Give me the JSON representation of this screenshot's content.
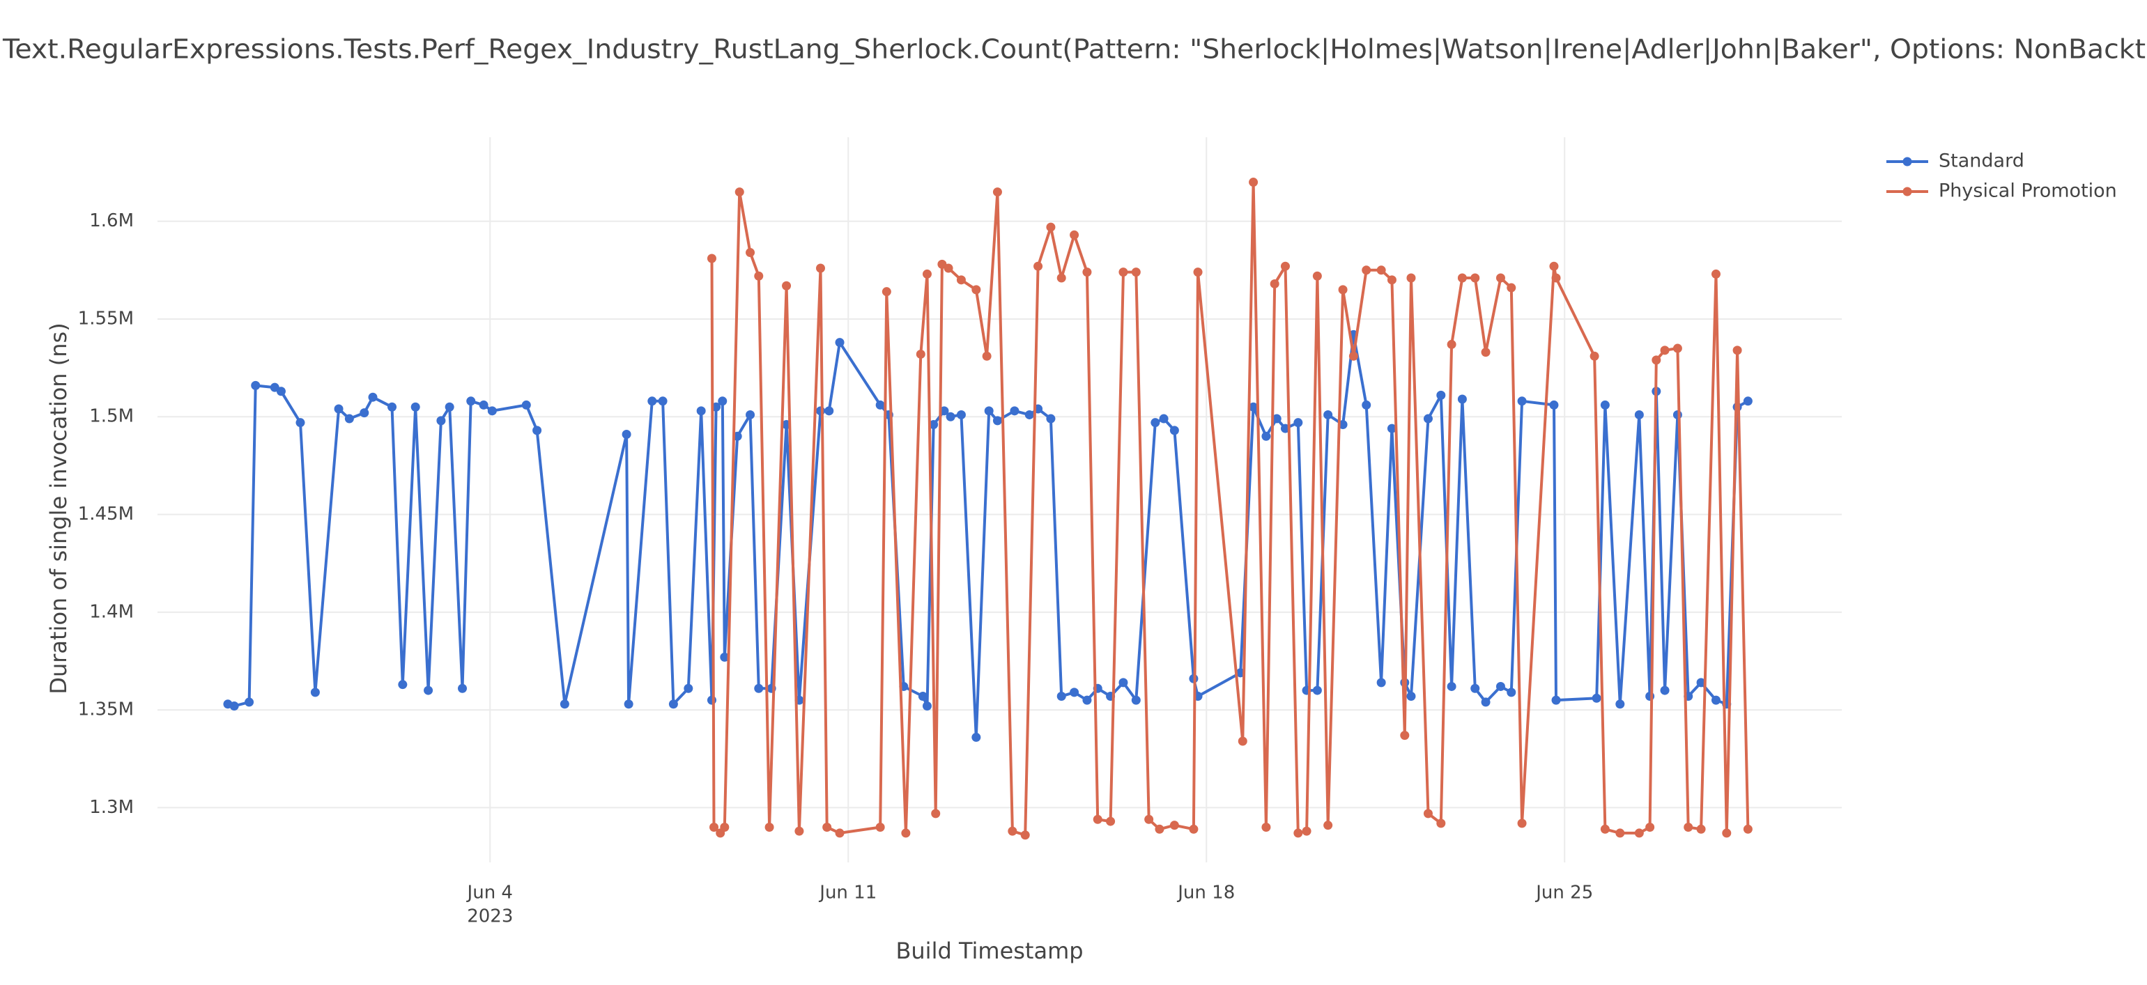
{
  "chart_data": {
    "type": "line",
    "title": "Text.RegularExpressions.Tests.Perf_Regex_Industry_RustLang_Sherlock.Count(Pattern: \"Sherlock|Holmes|Watson|Irene|Adler|John|Baker\", Options: NonBackt",
    "x_label": "Build Timestamp",
    "y_label": "Duration of single invocation (ns)",
    "x_year_label": "2023",
    "xlim": [
      "2023-05-28T12:00",
      "2023-06-30T10:00"
    ],
    "xticks": [
      {
        "value": "2023-06-04",
        "label": "Jun 4"
      },
      {
        "value": "2023-06-11",
        "label": "Jun 11"
      },
      {
        "value": "2023-06-18",
        "label": "Jun 18"
      },
      {
        "value": "2023-06-25",
        "label": "Jun 25"
      }
    ],
    "ylim": [
      1272000,
      1643000
    ],
    "yticks": [
      {
        "value": 1300000,
        "label": "1.3M"
      },
      {
        "value": 1350000,
        "label": "1.35M"
      },
      {
        "value": 1400000,
        "label": "1.4M"
      },
      {
        "value": 1450000,
        "label": "1.45M"
      },
      {
        "value": 1500000,
        "label": "1.5M"
      },
      {
        "value": 1550000,
        "label": "1.55M"
      },
      {
        "value": 1600000,
        "label": "1.6M"
      }
    ],
    "grid": true,
    "legend_position": "top-right",
    "series": [
      {
        "name": "Standard",
        "color": "#3a6fcf",
        "x": [
          "2023-05-29T21:00",
          "2023-05-30T00:00",
          "2023-05-30T07:00",
          "2023-05-30T10:00",
          "2023-05-30T19:00",
          "2023-05-30T22:00",
          "2023-05-31T07:00",
          "2023-05-31T14:00",
          "2023-06-01T01:00",
          "2023-06-01T06:00",
          "2023-06-01T13:00",
          "2023-06-01T17:00",
          "2023-06-02T02:00",
          "2023-06-02T07:00",
          "2023-06-02T13:00",
          "2023-06-02T19:00",
          "2023-06-03T01:00",
          "2023-06-03T05:00",
          "2023-06-03T11:00",
          "2023-06-03T15:00",
          "2023-06-03T21:00",
          "2023-06-04T01:00",
          "2023-06-04T17:00",
          "2023-06-04T22:00",
          "2023-06-05T11:00",
          "2023-06-06T16:00",
          "2023-06-06T17:00",
          "2023-06-07T04:00",
          "2023-06-07T09:00",
          "2023-06-07T14:00",
          "2023-06-07T21:00",
          "2023-06-08T03:00",
          "2023-06-08T08:00",
          "2023-06-08T10:00",
          "2023-06-08T13:00",
          "2023-06-08T14:00",
          "2023-06-08T20:00",
          "2023-06-09T02:00",
          "2023-06-09T06:00",
          "2023-06-09T12:00",
          "2023-06-09T19:00",
          "2023-06-10T01:00",
          "2023-06-10T11:00",
          "2023-06-10T15:00",
          "2023-06-10T20:00",
          "2023-06-11T15:00",
          "2023-06-11T19:00",
          "2023-06-12T02:00",
          "2023-06-12T11:00",
          "2023-06-12T13:00",
          "2023-06-12T16:00",
          "2023-06-12T21:00",
          "2023-06-13T00:00",
          "2023-06-13T05:00",
          "2023-06-13T12:00",
          "2023-06-13T18:00",
          "2023-06-13T22:00",
          "2023-06-14T06:00",
          "2023-06-14T13:00",
          "2023-06-14T17:00",
          "2023-06-14T23:00",
          "2023-06-15T04:00",
          "2023-06-15T10:00",
          "2023-06-15T16:00",
          "2023-06-15T21:00",
          "2023-06-16T03:00",
          "2023-06-16T09:00",
          "2023-06-16T15:00",
          "2023-06-17T00:00",
          "2023-06-17T04:00",
          "2023-06-17T09:00",
          "2023-06-17T18:00",
          "2023-06-17T20:00",
          "2023-06-18T16:00",
          "2023-06-18T22:00",
          "2023-06-19T04:00",
          "2023-06-19T09:00",
          "2023-06-19T13:00",
          "2023-06-19T19:00",
          "2023-06-19T23:00",
          "2023-06-20T04:00",
          "2023-06-20T09:00",
          "2023-06-20T16:00",
          "2023-06-20T21:00",
          "2023-06-21T03:00",
          "2023-06-21T10:00",
          "2023-06-21T15:00",
          "2023-06-21T21:00",
          "2023-06-22T00:00",
          "2023-06-22T08:00",
          "2023-06-22T14:00",
          "2023-06-22T19:00",
          "2023-06-23T00:00",
          "2023-06-23T06:00",
          "2023-06-23T11:00",
          "2023-06-23T18:00",
          "2023-06-23T23:00",
          "2023-06-24T04:00",
          "2023-06-24T19:00",
          "2023-06-24T20:00",
          "2023-06-25T15:00",
          "2023-06-25T19:00",
          "2023-06-26T02:00",
          "2023-06-26T11:00",
          "2023-06-26T16:00",
          "2023-06-26T19:00",
          "2023-06-26T23:00",
          "2023-06-27T05:00",
          "2023-06-27T10:00",
          "2023-06-27T16:00",
          "2023-06-27T23:00",
          "2023-06-28T04:00",
          "2023-06-28T09:00",
          "2023-06-28T14:00"
        ],
        "values": [
          1353000,
          1352000,
          1354000,
          1516000,
          1515000,
          1513000,
          1497000,
          1359000,
          1504000,
          1499000,
          1502000,
          1510000,
          1505000,
          1363000,
          1505000,
          1360000,
          1498000,
          1505000,
          1361000,
          1508000,
          1506000,
          1503000,
          1506000,
          1493000,
          1353000,
          1491000,
          1353000,
          1508000,
          1508000,
          1353000,
          1361000,
          1503000,
          1355000,
          1505000,
          1508000,
          1377000,
          1490000,
          1501000,
          1361000,
          1361000,
          1496000,
          1355000,
          1503000,
          1503000,
          1538000,
          1506000,
          1501000,
          1362000,
          1357000,
          1352000,
          1496000,
          1503000,
          1500000,
          1501000,
          1336000,
          1503000,
          1498000,
          1503000,
          1501000,
          1504000,
          1499000,
          1357000,
          1359000,
          1355000,
          1361000,
          1357000,
          1364000,
          1355000,
          1497000,
          1499000,
          1493000,
          1366000,
          1357000,
          1369000,
          1505000,
          1490000,
          1499000,
          1494000,
          1497000,
          1360000,
          1360000,
          1501000,
          1496000,
          1542000,
          1506000,
          1364000,
          1494000,
          1364000,
          1357000,
          1499000,
          1511000,
          1362000,
          1509000,
          1361000,
          1354000,
          1362000,
          1359000,
          1508000,
          1506000,
          1355000,
          1356000,
          1506000,
          1353000,
          1501000,
          1357000,
          1513000,
          1360000,
          1501000,
          1357000,
          1364000,
          1355000,
          1353000,
          1505000,
          1508000
        ]
      },
      {
        "name": "Physical Promotion",
        "color": "#d8694f",
        "x": [
          "2023-06-08T08:00",
          "2023-06-08T09:00",
          "2023-06-08T12:00",
          "2023-06-08T14:00",
          "2023-06-08T21:00",
          "2023-06-09T02:00",
          "2023-06-09T06:00",
          "2023-06-09T11:00",
          "2023-06-09T19:00",
          "2023-06-10T01:00",
          "2023-06-10T11:00",
          "2023-06-10T14:00",
          "2023-06-10T20:00",
          "2023-06-11T15:00",
          "2023-06-11T18:00",
          "2023-06-12T03:00",
          "2023-06-12T10:00",
          "2023-06-12T13:00",
          "2023-06-12T17:00",
          "2023-06-12T20:00",
          "2023-06-12T23:00",
          "2023-06-13T05:00",
          "2023-06-13T12:00",
          "2023-06-13T17:00",
          "2023-06-13T22:00",
          "2023-06-14T05:00",
          "2023-06-14T11:00",
          "2023-06-14T17:00",
          "2023-06-14T23:00",
          "2023-06-15T04:00",
          "2023-06-15T10:00",
          "2023-06-15T16:00",
          "2023-06-15T21:00",
          "2023-06-16T03:00",
          "2023-06-16T09:00",
          "2023-06-16T15:00",
          "2023-06-16T21:00",
          "2023-06-17T02:00",
          "2023-06-17T09:00",
          "2023-06-17T18:00",
          "2023-06-17T20:00",
          "2023-06-18T17:00",
          "2023-06-18T22:00",
          "2023-06-19T04:00",
          "2023-06-19T08:00",
          "2023-06-19T13:00",
          "2023-06-19T19:00",
          "2023-06-19T23:00",
          "2023-06-20T04:00",
          "2023-06-20T09:00",
          "2023-06-20T16:00",
          "2023-06-20T21:00",
          "2023-06-21T03:00",
          "2023-06-21T10:00",
          "2023-06-21T15:00",
          "2023-06-21T21:00",
          "2023-06-22T00:00",
          "2023-06-22T08:00",
          "2023-06-22T14:00",
          "2023-06-22T19:00",
          "2023-06-23T00:00",
          "2023-06-23T06:00",
          "2023-06-23T11:00",
          "2023-06-23T18:00",
          "2023-06-23T23:00",
          "2023-06-24T04:00",
          "2023-06-24T19:00",
          "2023-06-24T20:00",
          "2023-06-25T14:00",
          "2023-06-25T19:00",
          "2023-06-26T02:00",
          "2023-06-26T11:00",
          "2023-06-26T16:00",
          "2023-06-26T19:00",
          "2023-06-26T23:00",
          "2023-06-27T05:00",
          "2023-06-27T10:00",
          "2023-06-27T16:00",
          "2023-06-27T23:00",
          "2023-06-28T04:00",
          "2023-06-28T09:00",
          "2023-06-28T14:00"
        ],
        "values": [
          1581000,
          1290000,
          1287000,
          1290000,
          1615000,
          1584000,
          1572000,
          1290000,
          1567000,
          1288000,
          1576000,
          1290000,
          1287000,
          1290000,
          1564000,
          1287000,
          1532000,
          1573000,
          1297000,
          1578000,
          1576000,
          1570000,
          1565000,
          1531000,
          1615000,
          1288000,
          1286000,
          1577000,
          1597000,
          1571000,
          1593000,
          1574000,
          1294000,
          1293000,
          1574000,
          1574000,
          1294000,
          1289000,
          1291000,
          1289000,
          1574000,
          1334000,
          1620000,
          1290000,
          1568000,
          1577000,
          1287000,
          1288000,
          1572000,
          1291000,
          1565000,
          1531000,
          1575000,
          1575000,
          1570000,
          1337000,
          1571000,
          1297000,
          1292000,
          1537000,
          1571000,
          1571000,
          1533000,
          1571000,
          1566000,
          1292000,
          1577000,
          1571000,
          1531000,
          1289000,
          1287000,
          1287000,
          1290000,
          1529000,
          1534000,
          1535000,
          1290000,
          1289000,
          1573000,
          1287000,
          1534000,
          1289000
        ]
      }
    ]
  }
}
